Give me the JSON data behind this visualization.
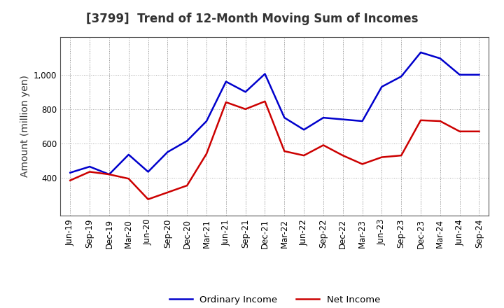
{
  "title": "[3799]  Trend of 12-Month Moving Sum of Incomes",
  "ylabel": "Amount (million yen)",
  "x_labels": [
    "Jun-19",
    "Sep-19",
    "Dec-19",
    "Mar-20",
    "Jun-20",
    "Sep-20",
    "Dec-20",
    "Mar-21",
    "Jun-21",
    "Sep-21",
    "Dec-21",
    "Mar-22",
    "Jun-22",
    "Sep-22",
    "Dec-22",
    "Mar-23",
    "Jun-23",
    "Sep-23",
    "Dec-23",
    "Mar-24",
    "Jun-24",
    "Sep-24"
  ],
  "ordinary_income": [
    430,
    465,
    420,
    535,
    435,
    550,
    615,
    730,
    960,
    900,
    1005,
    750,
    680,
    750,
    740,
    730,
    930,
    990,
    1130,
    1095,
    1000,
    1000
  ],
  "net_income": [
    385,
    435,
    420,
    395,
    275,
    315,
    355,
    540,
    840,
    800,
    845,
    555,
    530,
    590,
    530,
    480,
    520,
    530,
    735,
    730,
    670,
    670
  ],
  "ordinary_color": "#0000cc",
  "net_color": "#cc0000",
  "ylim_min": 180,
  "ylim_max": 1220,
  "yticks": [
    400,
    600,
    800,
    1000
  ],
  "background_color": "#ffffff",
  "plot_bg_color": "#ffffff",
  "grid_color": "#999999",
  "title_fontsize": 12,
  "axis_label_fontsize": 10,
  "tick_fontsize": 8.5,
  "legend_labels": [
    "Ordinary Income",
    "Net Income"
  ],
  "line_width": 1.8
}
